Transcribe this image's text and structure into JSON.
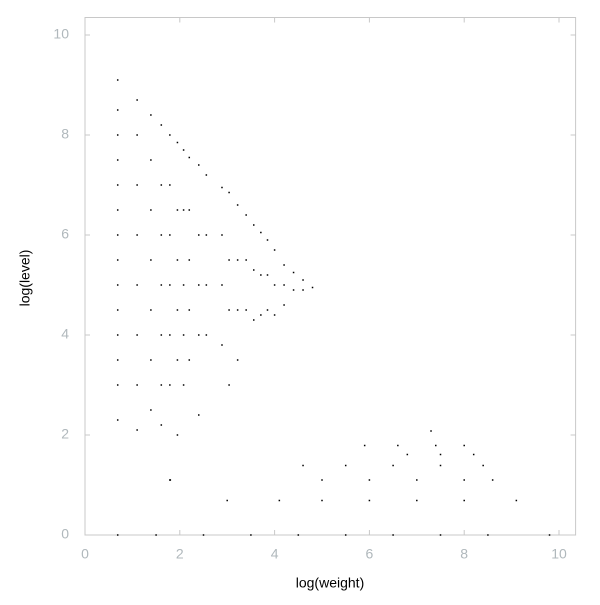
{
  "chart_data": {
    "type": "scatter",
    "x_label": "log(weight)",
    "y_label": "log(level)",
    "color": "#000000",
    "xlim": [
      0,
      10.35
    ],
    "ylim": [
      0,
      10.35
    ],
    "xticks": [
      0,
      2,
      4,
      6,
      8,
      10
    ],
    "yticks": [
      0,
      2,
      4,
      6,
      8,
      10
    ],
    "x": [
      0.69,
      0.69,
      0.69,
      0.69,
      0.69,
      0.69,
      0.69,
      0.69,
      0.69,
      0.69,
      0.69,
      0.69,
      0.69,
      0.69,
      1.1,
      1.1,
      1.1,
      1.1,
      1.1,
      1.1,
      1.1,
      1.1,
      1.39,
      1.39,
      1.39,
      1.39,
      1.39,
      1.39,
      1.39,
      1.61,
      1.61,
      1.61,
      1.61,
      1.61,
      1.61,
      1.61,
      1.79,
      1.79,
      1.79,
      1.79,
      1.79,
      1.79,
      1.79,
      1.95,
      1.95,
      1.95,
      1.95,
      1.95,
      1.95,
      2.08,
      2.08,
      2.08,
      2.08,
      2.08,
      2.2,
      2.2,
      2.2,
      2.2,
      2.2,
      2.4,
      2.4,
      2.4,
      2.4,
      2.4,
      2.56,
      2.56,
      2.56,
      2.56,
      2.89,
      2.89,
      2.89,
      2.89,
      3.04,
      3.04,
      3.04,
      3.04,
      3.22,
      3.22,
      3.22,
      3.22,
      3.4,
      3.4,
      3.4,
      3.56,
      3.56,
      3.56,
      3.71,
      3.71,
      3.71,
      3.85,
      3.85,
      3.85,
      4.0,
      4.0,
      4.0,
      4.2,
      4.2,
      4.2,
      4.4,
      4.4,
      4.6,
      4.6,
      4.8,
      0.69,
      1.5,
      2.5,
      3.5,
      4.5,
      5.5,
      6.5,
      7.5,
      8.5,
      9.8,
      3.0,
      4.1,
      5,
      6,
      7,
      8,
      9.1,
      1.8,
      5,
      6,
      7,
      8,
      8.6,
      4.6,
      5.5,
      6.5,
      7.5,
      8.4,
      6.8,
      7.5,
      8.2,
      5.9,
      6.6,
      7.4,
      8.0,
      7.3
    ],
    "values": [
      9.1,
      8.5,
      8,
      7.5,
      7,
      6.5,
      6,
      5.5,
      5,
      4.5,
      4,
      3.5,
      3,
      2.3,
      8.7,
      8,
      7,
      6,
      5,
      4,
      3,
      2.1,
      8.4,
      7.5,
      6.5,
      5.5,
      4.5,
      3.5,
      2.5,
      8.2,
      7,
      6,
      5,
      4,
      3,
      2.2,
      8.0,
      7,
      6,
      5,
      4,
      3,
      1.1,
      7.85,
      6.5,
      5.5,
      4.5,
      3.5,
      2,
      7.7,
      6.5,
      5,
      4,
      3,
      7.55,
      6.5,
      5.5,
      4.5,
      3.5,
      7.4,
      6,
      5,
      4,
      2.4,
      7.2,
      6,
      5,
      4,
      6.95,
      6,
      5,
      3.8,
      6.85,
      5.5,
      4.5,
      3,
      6.6,
      5.5,
      4.5,
      3.5,
      6.4,
      5.5,
      4.5,
      6.2,
      5.3,
      4.3,
      6.05,
      5.2,
      4.4,
      5.9,
      5.2,
      4.5,
      5.7,
      5.0,
      4.4,
      5.4,
      5.0,
      4.6,
      5.25,
      4.9,
      5.1,
      4.9,
      4.95,
      0,
      0,
      0,
      0,
      0,
      0,
      0,
      0,
      0,
      0,
      0.69,
      0.69,
      0.69,
      0.69,
      0.69,
      0.69,
      0.69,
      1.1,
      1.1,
      1.1,
      1.1,
      1.1,
      1.1,
      1.39,
      1.39,
      1.39,
      1.39,
      1.39,
      1.61,
      1.61,
      1.61,
      1.79,
      1.79,
      1.79,
      1.79,
      2.08
    ]
  }
}
